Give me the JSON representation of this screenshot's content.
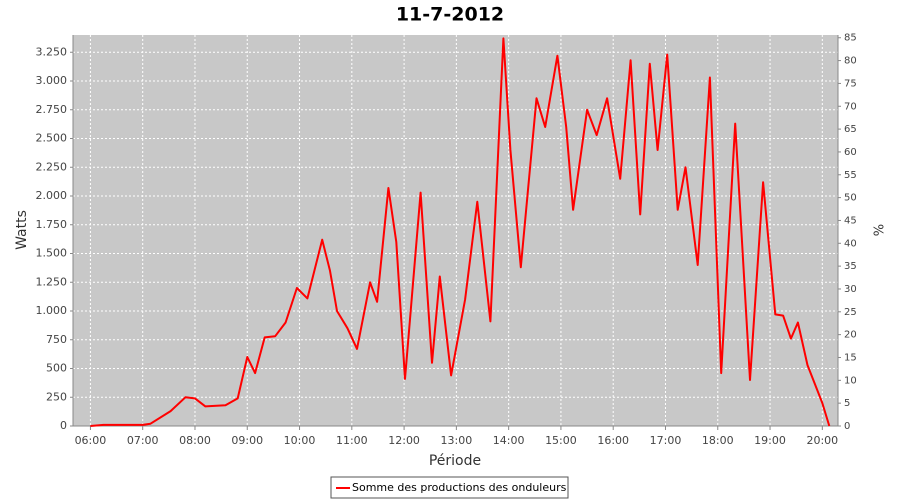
{
  "chart_data": {
    "type": "line",
    "title": "11-7-2012",
    "x_label": "Période",
    "y_label": "Watts",
    "y2_label": "%",
    "x": [
      "06:00",
      "06:15",
      "07:00",
      "07:09",
      "07:32",
      "07:49",
      "08:00",
      "08:12",
      "08:35",
      "08:49",
      "09:00",
      "09:09",
      "09:20",
      "09:32",
      "09:44",
      "09:57",
      "10:09",
      "10:26",
      "10:35",
      "10:43",
      "10:55",
      "11:06",
      "11:21",
      "11:29",
      "11:42",
      "11:51",
      "12:01",
      "12:19",
      "12:32",
      "12:41",
      "12:54",
      "13:10",
      "13:24",
      "13:39",
      "13:54",
      "14:02",
      "14:14",
      "14:32",
      "14:42",
      "14:56",
      "15:06",
      "15:14",
      "15:30",
      "15:41",
      "15:53",
      "16:08",
      "16:20",
      "16:31",
      "16:42",
      "16:51",
      "17:02",
      "17:14",
      "17:23",
      "17:37",
      "17:51",
      "18:04",
      "18:20",
      "18:37",
      "18:52",
      "19:06",
      "19:15",
      "19:24",
      "19:32",
      "19:43",
      "20:00",
      "20:08"
    ],
    "series": [
      {
        "name": "Somme des productions des onduleurs",
        "color": "#ff0000",
        "values": [
          0,
          10,
          10,
          20,
          130,
          250,
          240,
          170,
          180,
          240,
          600,
          460,
          770,
          780,
          900,
          1200,
          1110,
          1620,
          1350,
          1000,
          850,
          670,
          1250,
          1080,
          2070,
          1600,
          410,
          2030,
          550,
          1300,
          440,
          1100,
          1950,
          910,
          3370,
          2400,
          1380,
          2850,
          2600,
          3220,
          2600,
          1880,
          2750,
          2530,
          2850,
          2150,
          3180,
          1840,
          3150,
          2400,
          3230,
          1880,
          2250,
          1400,
          3030,
          460,
          2630,
          400,
          2120,
          970,
          960,
          760,
          900,
          530,
          200,
          0
        ]
      }
    ],
    "xlim": [
      "05:40",
      "20:18"
    ],
    "xticks": [
      "06:00",
      "07:00",
      "08:00",
      "09:00",
      "10:00",
      "11:00",
      "12:00",
      "13:00",
      "14:00",
      "15:00",
      "16:00",
      "17:00",
      "18:00",
      "19:00",
      "20:00"
    ],
    "ylim": [
      0,
      3400
    ],
    "yticks": [
      0,
      250,
      500,
      750,
      {
        "value": 1000,
        "label": "1.000"
      },
      {
        "value": 1250,
        "label": "1.250"
      },
      {
        "value": 1500,
        "label": "1.500"
      },
      {
        "value": 1750,
        "label": "1.750"
      },
      {
        "value": 2000,
        "label": "2.000"
      },
      {
        "value": 2250,
        "label": "2.250"
      },
      {
        "value": 2500,
        "label": "2.500"
      },
      {
        "value": 2750,
        "label": "2.750"
      },
      {
        "value": 3000,
        "label": "3.000"
      },
      {
        "value": 3250,
        "label": "3.250"
      }
    ],
    "y2lim": [
      0,
      85.6
    ],
    "y2ticks": [
      0,
      5,
      10,
      15,
      20,
      25,
      30,
      35,
      40,
      45,
      50,
      55,
      60,
      65,
      70,
      75,
      80,
      85
    ],
    "grid": true
  }
}
